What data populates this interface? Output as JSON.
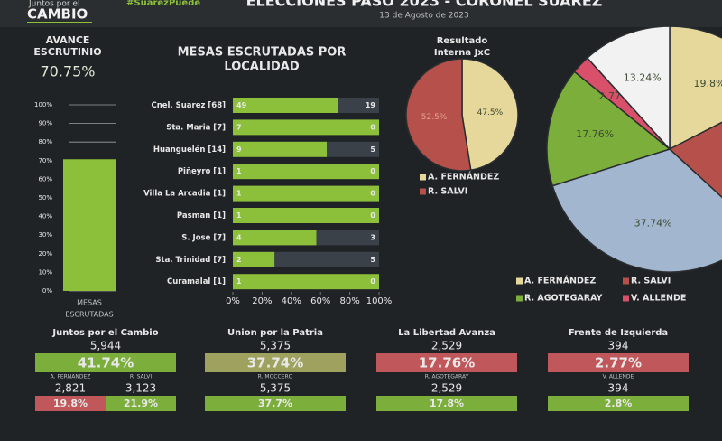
{
  "header": {
    "brand_top": "Juntos por el",
    "brand": "CAMBIO",
    "hashtag": "#SuarezPuede",
    "title": "ELECCIONES PASO 2023 - CORONEL SUAREZ",
    "date": "13 de Agosto de 2023"
  },
  "chart_data": [
    {
      "type": "bar",
      "title": [
        "AVANCE",
        "ESCRUTINIO"
      ],
      "value_text": "70.75%",
      "categories": [
        [
          "MESAS",
          "ESCRUTADAS"
        ]
      ],
      "values": [
        70.75
      ],
      "color": "#8cbf3a",
      "ylim": [
        0,
        100
      ],
      "grid": true,
      "yticks": [
        {
          "value": 0,
          "label": "0%"
        },
        {
          "value": 10,
          "label": "10%"
        },
        {
          "value": 20,
          "label": "20%"
        },
        {
          "value": 30,
          "label": "30%"
        },
        {
          "value": 40,
          "label": "40%"
        },
        {
          "value": 50,
          "label": "50%"
        },
        {
          "value": 60,
          "label": "60%"
        },
        {
          "value": 70,
          "label": "70%"
        },
        {
          "value": 80,
          "label": "80%"
        },
        {
          "value": 90,
          "label": "90%"
        },
        {
          "value": 100,
          "label": "100%"
        }
      ]
    },
    {
      "type": "stacked-hbar",
      "stack": "percent",
      "title": [
        "MESAS ESCRUTADAS POR",
        "LOCALIDAD"
      ],
      "categories": [
        "Cnel. Suarez [68]",
        "Sta. Maria [7]",
        "Huanguelén [14]",
        "Piñeyro [1]",
        "Villa La Arcadia [1]",
        "Pasman [1]",
        "S. Jose [7]",
        "Sta. Trinidad [7]",
        "Curamalal [1]"
      ],
      "series": [
        {
          "color": "#8cbf3a",
          "values": [
            49,
            7,
            9,
            1,
            1,
            1,
            4,
            2,
            1
          ]
        },
        {
          "color": "#3a4148",
          "values": [
            19,
            0,
            5,
            0,
            0,
            0,
            3,
            5,
            0
          ]
        }
      ],
      "xlim": [
        0,
        100
      ],
      "xticks": [
        {
          "value": 0,
          "label": "0%"
        },
        {
          "value": 20,
          "label": "20%"
        },
        {
          "value": 40,
          "label": "40%"
        },
        {
          "value": 60,
          "label": "60%"
        },
        {
          "value": 80,
          "label": "80%"
        },
        {
          "value": 100,
          "label": "100%"
        }
      ]
    },
    {
      "type": "pie",
      "title": [
        "Resultado",
        "Interna JxC"
      ],
      "categories": [
        "A. FERNÁNDEZ",
        "R. SALVI"
      ],
      "values": [
        47.5,
        52.5
      ],
      "value_labels": [
        "47.5%",
        "52.5%"
      ],
      "colors": [
        "#e6d79a",
        "#b5504a"
      ]
    },
    {
      "type": "pie",
      "categories": [
        "A. FERNÁNDEZ",
        "R. SALVI",
        null,
        "R. AGOTEGARAY",
        "V. ALLENDE",
        null
      ],
      "values": [
        19.8,
        21.9,
        37.74,
        17.76,
        2.77,
        13.24
      ],
      "value_labels": [
        "19.8%",
        null,
        "37.74%",
        "17.76%",
        "2.77%",
        "13.24%"
      ],
      "colors": [
        "#e6d79a",
        "#b5504a",
        "#a3b6cf",
        "#7cae3c",
        "#d9506a",
        "#f2f2f2"
      ]
    }
  ],
  "results": [
    {
      "party": "Juntos por el Cambio",
      "votes": "5,944",
      "pct": "41.74%",
      "color": "#7cae3c",
      "candidates": [
        {
          "name": "A. FERNANDEZ",
          "votes": "2,821",
          "pct": "19.8%",
          "color": "#c0575a"
        },
        {
          "name": "R. SALVI",
          "votes": "3,123",
          "pct": "21.9%",
          "color": "#7cae3c"
        }
      ]
    },
    {
      "party": "Union por la Patria",
      "votes": "5,375",
      "pct": "37.74%",
      "color": "#9ea25e",
      "candidates": [
        {
          "name": "R. MOCCERO",
          "votes": "5,375",
          "pct": "37.7%",
          "color": "#7cae3c"
        }
      ]
    },
    {
      "party": "La Libertad Avanza",
      "votes": "2,529",
      "pct": "17.76%",
      "color": "#c0575a",
      "candidates": [
        {
          "name": "R. AGOTEGARAY",
          "votes": "2,529",
          "pct": "17.8%",
          "color": "#7cae3c"
        }
      ]
    },
    {
      "party": "Frente de Izquierda",
      "votes": "394",
      "pct": "2.77%",
      "color": "#c0575a",
      "candidates": [
        {
          "name": "V. ALLENDE",
          "votes": "394",
          "pct": "2.8%",
          "color": "#7cae3c"
        }
      ]
    }
  ]
}
